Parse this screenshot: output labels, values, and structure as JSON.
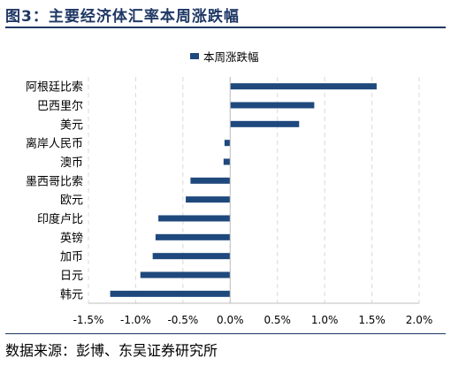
{
  "figure_title": "图3：主要经济体汇率本周涨跌幅",
  "source": "数据来源：彭博、东吴证券研究所",
  "chart_data": {
    "type": "bar",
    "orientation": "horizontal",
    "categories": [
      "阿根廷比索",
      "巴西里尔",
      "美元",
      "离岸人民币",
      "澳币",
      "墨西哥比索",
      "欧元",
      "印度卢比",
      "英镑",
      "加币",
      "日元",
      "韩元"
    ],
    "series": [
      {
        "name": "本周涨跌幅",
        "values": [
          1.55,
          0.89,
          0.73,
          -0.06,
          -0.07,
          -0.42,
          -0.47,
          -0.76,
          -0.79,
          -0.82,
          -0.95,
          -1.27
        ],
        "color": "#1f497d"
      }
    ],
    "xlim": [
      -1.5,
      2.0
    ],
    "xticks": [
      "-1.5%",
      "-1.0%",
      "-0.5%",
      "0.0%",
      "0.5%",
      "1.0%",
      "1.5%",
      "2.0%"
    ],
    "xtick_values": [
      -1.5,
      -1.0,
      -0.5,
      0.0,
      0.5,
      1.0,
      1.5,
      2.0
    ],
    "grid": true,
    "legend": "top-center"
  }
}
